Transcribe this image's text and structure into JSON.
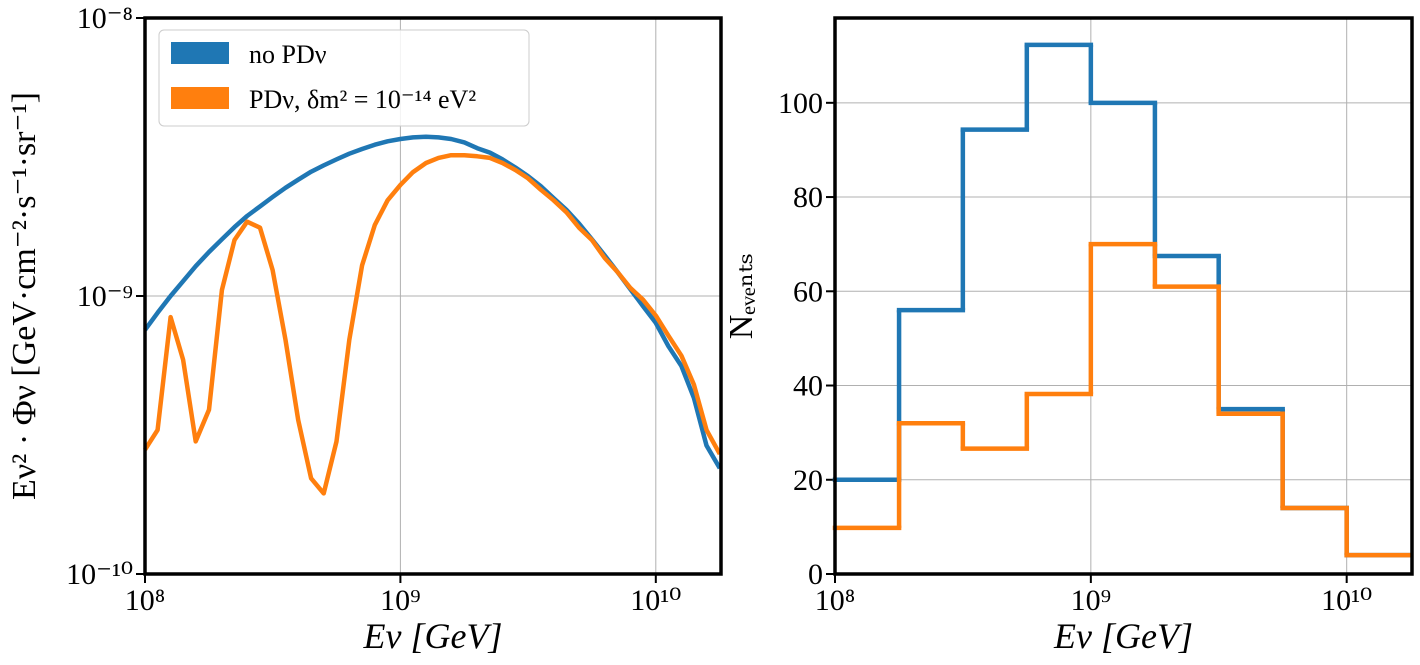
{
  "chart_data": [
    {
      "type": "line",
      "xlabel": "Eν [GeV]",
      "ylabel": "Eν² · Φν [GeV·cm⁻²·s⁻¹·sr⁻¹]",
      "log_x": true,
      "log_y": true,
      "grid": true,
      "legend": "upper left",
      "xlim": [
        100000000.0,
        18000000000.0
      ],
      "ylim": [
        1e-10,
        1e-08
      ],
      "xticks": [
        {
          "value": 100000000.0,
          "label": "10⁸"
        },
        {
          "value": 1000000000.0,
          "label": "10⁹"
        },
        {
          "value": 10000000000.0,
          "label": "10¹⁰"
        }
      ],
      "yticks": [
        {
          "value": 1e-10,
          "label": "10⁻¹⁰"
        },
        {
          "value": 1e-09,
          "label": "10⁻⁹"
        },
        {
          "value": 1e-08,
          "label": "10⁻⁸"
        }
      ],
      "x": [
        100000000.0,
        112000000.0,
        126000000.0,
        141000000.0,
        158000000.0,
        178000000.0,
        200000000.0,
        224000000.0,
        251000000.0,
        282000000.0,
        316000000.0,
        355000000.0,
        398000000.0,
        447000000.0,
        501000000.0,
        562000000.0,
        631000000.0,
        708000000.0,
        794000000.0,
        891000000.0,
        1000000000.0,
        1120000000.0,
        1260000000.0,
        1410000000.0,
        1580000000.0,
        1780000000.0,
        2000000000.0,
        2240000000.0,
        2510000000.0,
        2820000000.0,
        3160000000.0,
        3550000000.0,
        3980000000.0,
        4470000000.0,
        5010000000.0,
        5620000000.0,
        6310000000.0,
        7080000000.0,
        7940000000.0,
        8910000000.0,
        10000000000.0,
        11200000000.0,
        12600000000.0,
        14100000000.0,
        15800000000.0,
        17800000000.0
      ],
      "series": [
        {
          "name": "no PDν",
          "color": "#1f77b4",
          "values": [
            7.55e-10,
            8.7e-10,
            1e-09,
            1.13e-09,
            1.28e-09,
            1.44e-09,
            1.6e-09,
            1.77e-09,
            1.94e-09,
            2.1e-09,
            2.27e-09,
            2.45e-09,
            2.62e-09,
            2.8e-09,
            2.95e-09,
            3.1e-09,
            3.25e-09,
            3.38e-09,
            3.5e-09,
            3.6e-09,
            3.67e-09,
            3.72e-09,
            3.74e-09,
            3.72e-09,
            3.67e-09,
            3.57e-09,
            3.4e-09,
            3.28e-09,
            3.1e-09,
            2.9e-09,
            2.7e-09,
            2.48e-09,
            2.25e-09,
            2.04e-09,
            1.82e-09,
            1.6e-09,
            1.4e-09,
            1.22e-09,
            1.06e-09,
            9.2e-10,
            8e-10,
            6.6e-10,
            5.6e-10,
            4.3e-10,
            2.9e-10,
            2.4e-10
          ]
        },
        {
          "name": "PDν, δm² = 10⁻¹⁴ eV²",
          "color": "#ff7f0e",
          "values": [
            2.8e-10,
            3.3e-10,
            8.4e-10,
            5.9e-10,
            3e-10,
            3.9e-10,
            1.05e-09,
            1.59e-09,
            1.85e-09,
            1.76e-09,
            1.24e-09,
            6.95e-10,
            3.58e-10,
            2.21e-10,
            1.95e-10,
            3e-10,
            6.95e-10,
            1.29e-09,
            1.8e-09,
            2.21e-09,
            2.51e-09,
            2.79e-09,
            3.01e-09,
            3.14e-09,
            3.21e-09,
            3.21e-09,
            3.18e-09,
            3.14e-09,
            3.01e-09,
            2.84e-09,
            2.65e-09,
            2.41e-09,
            2.21e-09,
            2e-09,
            1.76e-09,
            1.59e-09,
            1.37e-09,
            1.22e-09,
            1.07e-09,
            9.7e-10,
            8.5e-10,
            7.2e-10,
            6.1e-10,
            4.8e-10,
            3.3e-10,
            2.7e-10
          ]
        }
      ]
    },
    {
      "type": "histogram",
      "xlabel": "Eν [GeV]",
      "ylabel": "Nₑᵥₑₙₜₛ",
      "log_x": true,
      "grid": true,
      "xlim": [
        100000000.0,
        18000000000.0
      ],
      "ylim": [
        0,
        118
      ],
      "xticks": [
        {
          "value": 100000000.0,
          "label": "10⁸"
        },
        {
          "value": 1000000000.0,
          "label": "10⁹"
        },
        {
          "value": 10000000000.0,
          "label": "10¹⁰"
        }
      ],
      "yticks": [
        0,
        20,
        40,
        60,
        80,
        100
      ],
      "bins": [
        100000000.0,
        178000000.0,
        316000000.0,
        562000000.0,
        1000000000.0,
        1780000000.0,
        3160000000.0,
        5620000000.0,
        10000000000.0,
        17800000000.0
      ],
      "series": [
        {
          "color": "#1f77b4",
          "values": [
            20,
            56,
            94.3,
            112.3,
            100,
            67.5,
            35,
            14,
            4
          ]
        },
        {
          "color": "#ff7f0e",
          "values": [
            9.8,
            32,
            26.6,
            38.2,
            70,
            61,
            34,
            14,
            4
          ]
        }
      ]
    }
  ]
}
